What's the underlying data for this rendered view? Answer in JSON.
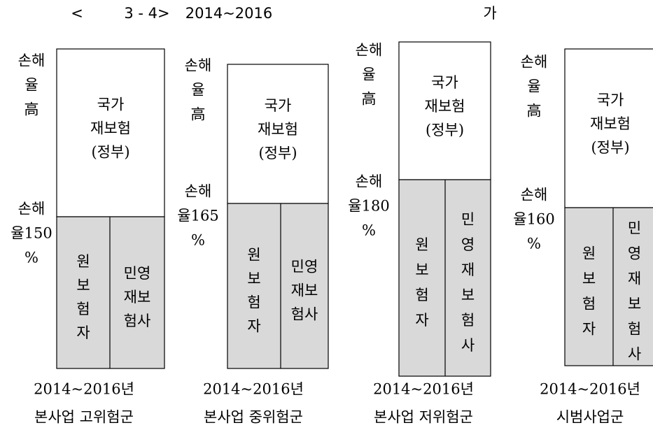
{
  "title": {
    "open": "<",
    "number": "3 - 4>",
    "period": "2014~2016",
    "tail": "가"
  },
  "panels": [
    {
      "left_top": [
        "손해",
        "율",
        "高"
      ],
      "left_mid": [
        "손해",
        "율150",
        "%"
      ],
      "top": [
        "국가",
        "재보험",
        "(정부)"
      ],
      "bottom_left": [
        "원",
        "보",
        "험",
        "자"
      ],
      "bottom_right": [
        "민영",
        "재보",
        "험사"
      ],
      "caption": [
        "2014~2016년",
        "본사업 고위험군"
      ]
    },
    {
      "left_top": [
        "손해",
        "율",
        "高"
      ],
      "left_mid": [
        "손해",
        "율165",
        "%"
      ],
      "top": [
        "국가",
        "재보험",
        "(정부)"
      ],
      "bottom_left": [
        "원",
        "보",
        "험",
        "자"
      ],
      "bottom_right": [
        "민영",
        "재보",
        "험사"
      ],
      "caption": [
        "2014~2016년",
        "본사업 중위험군"
      ]
    },
    {
      "left_top": [
        "손해",
        "율",
        "高"
      ],
      "left_mid": [
        "손해",
        "율180",
        "%"
      ],
      "top": [
        "국가",
        "재보험",
        "(정부)"
      ],
      "bottom_left": [
        "원",
        "보",
        "험",
        "자"
      ],
      "bottom_right": [
        "민",
        "영",
        "재",
        "보",
        "험",
        "사"
      ],
      "caption": [
        "2014~2016년",
        "본사업 저위험군"
      ]
    },
    {
      "left_top": [
        "손해",
        "율",
        "高"
      ],
      "left_mid": [
        "손해",
        "율160",
        "%"
      ],
      "top": [
        "국가",
        "재보험",
        "(정부)"
      ],
      "bottom_left": [
        "원",
        "보",
        "험",
        "자"
      ],
      "bottom_right": [
        "민",
        "영",
        "재",
        "보",
        "험",
        "사"
      ],
      "caption": [
        "2014~2016년",
        "시범사업군"
      ]
    }
  ]
}
